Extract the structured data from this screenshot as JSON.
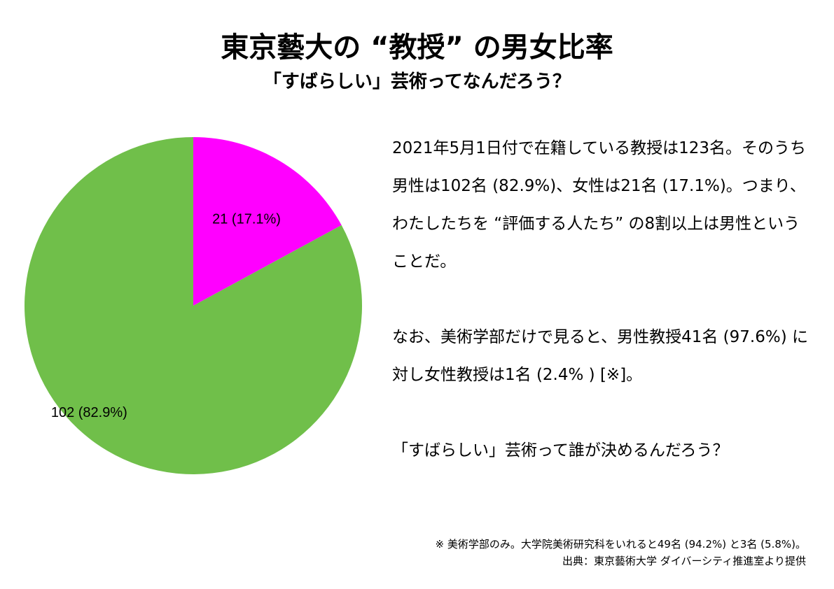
{
  "header": {
    "title": "東京藝大の “教授” の男女比率",
    "subtitle": "「すばらしい」芸術ってなんだろう？"
  },
  "chart_data": {
    "type": "pie",
    "title": "東京藝大の “教授” の男女比率",
    "subtitle": "「すばらしい」芸術ってなんだろう？",
    "start_angle_deg": 0,
    "direction": "clockwise",
    "slices": [
      {
        "value": 21,
        "percent": 17.1,
        "label": "21 (17.1%)",
        "color": "#ff00ff"
      },
      {
        "value": 102,
        "percent": 82.9,
        "label": "102 (82.9%)",
        "color": "#70bf4a"
      }
    ],
    "legend": "none"
  },
  "description": {
    "para1": "2021年5月1日付で在籍している教授は123名。そのうち男性は102名 (82.9%)、女性は21名 (17.1%)。つまり、わたしたちを “評価する人たち” の8割以上は男性ということだ。",
    "para2": "なお、美術学部だけで見ると、男性教授41名 (97.6%) に対し女性教授は1名 (2.4% ) [※]。",
    "para3": "「すばらしい」芸術って誰が決めるんだろう？"
  },
  "notes": {
    "footnote": "※ 美術学部のみ。大学院美術研究科をいれると49名 (94.2%) と3名 (5.8%)。",
    "source": "出典：東京藝術大学 ダイバーシティ推進室より提供"
  }
}
